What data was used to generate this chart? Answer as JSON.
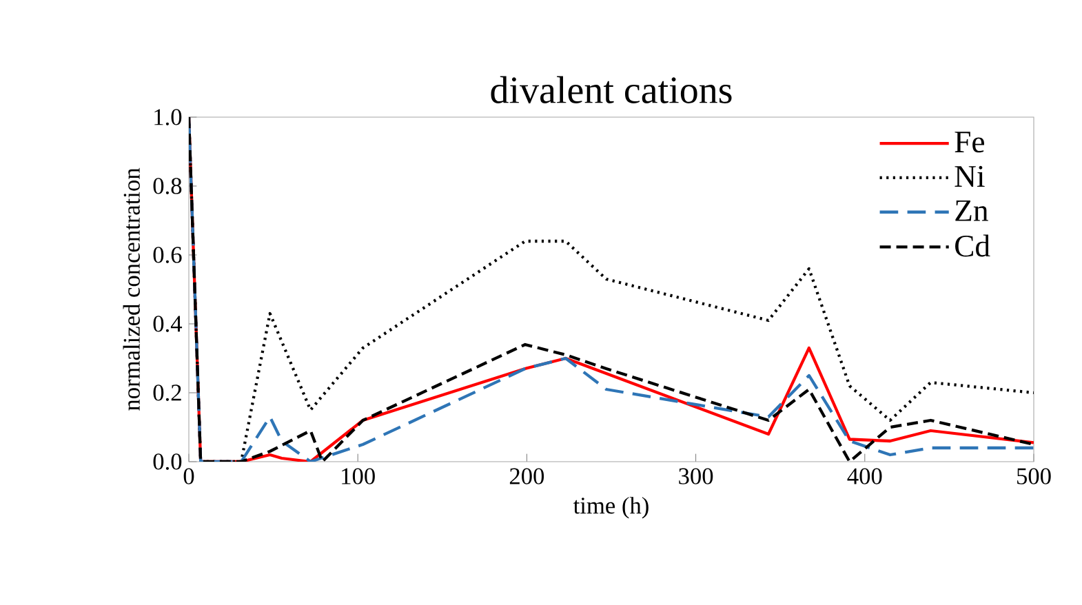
{
  "chart_data": {
    "type": "line",
    "title": "divalent cations",
    "xlabel": "time (h)",
    "ylabel": "normalized  concentration",
    "xlim": [
      0,
      500
    ],
    "xticks": [
      0,
      100,
      200,
      300,
      400,
      500
    ],
    "ylim": [
      0,
      1.0
    ],
    "yticks": [
      {
        "value": 0,
        "label": "0.0"
      },
      0.2,
      0.4,
      0.6,
      0.8,
      {
        "value": 1,
        "label": "1.0"
      }
    ],
    "legend": "top right",
    "grid": false,
    "marker": "none",
    "series": [
      {
        "name": "Fe",
        "color": "#ff0000",
        "line_style": "solid",
        "x": [
          0,
          7,
          31,
          48,
          55,
          72,
          103,
          199,
          223,
          343,
          367,
          391,
          415,
          439,
          500
        ],
        "values": [
          1.0,
          0,
          0,
          0.02,
          0.01,
          0,
          0.12,
          0.27,
          0.3,
          0.08,
          0.33,
          0.065,
          0.06,
          0.09,
          0.055
        ]
      },
      {
        "name": "Ni",
        "color": "#000000",
        "line_style": "dotted",
        "x": [
          0,
          7,
          31,
          48,
          72,
          103,
          199,
          223,
          247,
          343,
          367,
          391,
          415,
          439,
          500
        ],
        "values": [
          1.0,
          0,
          0,
          0.43,
          0.15,
          0.33,
          0.64,
          0.64,
          0.53,
          0.41,
          0.56,
          0.22,
          0.12,
          0.23,
          0.2
        ]
      },
      {
        "name": "Zn",
        "color": "#2e75b6",
        "line_style": "dashed",
        "x": [
          0,
          7,
          31,
          48,
          55,
          72,
          103,
          199,
          223,
          247,
          343,
          367,
          391,
          415,
          439,
          500
        ],
        "values": [
          1.0,
          0,
          0,
          0.13,
          0.06,
          0,
          0.05,
          0.27,
          0.3,
          0.21,
          0.13,
          0.25,
          0.06,
          0.02,
          0.04,
          0.04
        ]
      },
      {
        "name": "Cd",
        "color": "#000000",
        "line_style": "dashed",
        "x": [
          0,
          7,
          31,
          48,
          72,
          79,
          103,
          199,
          223,
          247,
          343,
          367,
          391,
          415,
          439,
          500
        ],
        "values": [
          1.0,
          0,
          0,
          0.03,
          0.09,
          0,
          0.12,
          0.34,
          0.31,
          0.27,
          0.12,
          0.21,
          0,
          0.1,
          0.12,
          0.05
        ]
      }
    ]
  }
}
